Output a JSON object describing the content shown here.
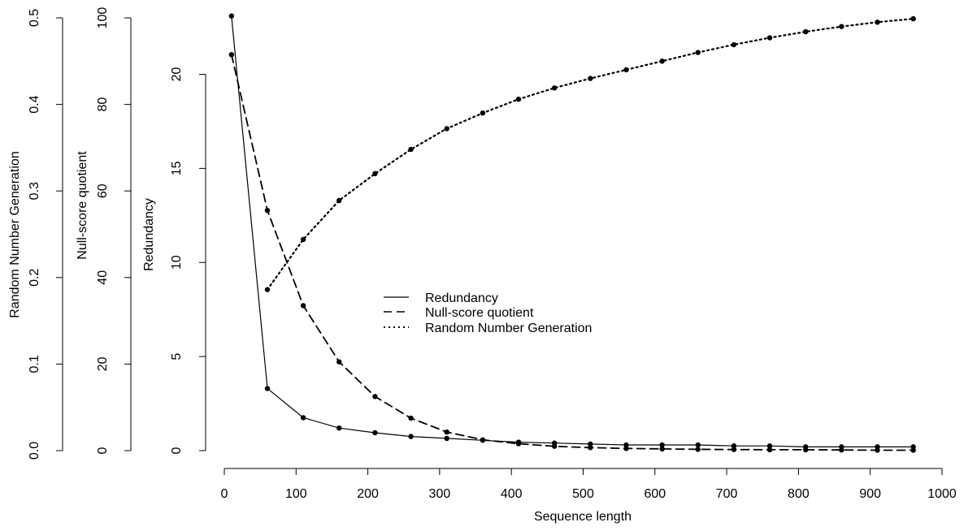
{
  "chart_data": {
    "type": "line",
    "xlabel": "Sequence length",
    "x_axis": {
      "range": [
        0,
        1000
      ],
      "ticks": [
        0,
        100,
        200,
        300,
        400,
        500,
        600,
        700,
        800,
        900,
        1000
      ]
    },
    "y_axes": [
      {
        "id": "rng",
        "label": "Random Number Generation",
        "range": [
          0,
          0.5
        ],
        "ticks": [
          "0.0",
          "0.1",
          "0.2",
          "0.3",
          "0.4",
          "0.5"
        ]
      },
      {
        "id": "nsq",
        "label": "Null-score quotient",
        "range": [
          0,
          100
        ],
        "ticks": [
          "0",
          "20",
          "40",
          "60",
          "80",
          "100"
        ]
      },
      {
        "id": "red",
        "label": "Redundancy",
        "range": [
          0,
          23
        ],
        "ticks": [
          "0",
          "5",
          "10",
          "15",
          "20"
        ]
      }
    ],
    "legend": {
      "placement": "center",
      "entries": [
        "Redundancy",
        "Null-score quotient",
        "Random Number Generation"
      ]
    },
    "series": [
      {
        "name": "Redundancy",
        "axis": "red",
        "line": "solid",
        "x": [
          10,
          60,
          110,
          160,
          210,
          260,
          310,
          360,
          410,
          460,
          510,
          560,
          610,
          660,
          710,
          760,
          810,
          860,
          910,
          960
        ],
        "y": [
          23.1,
          3.3,
          1.75,
          1.2,
          0.95,
          0.75,
          0.65,
          0.55,
          0.45,
          0.4,
          0.35,
          0.3,
          0.3,
          0.3,
          0.25,
          0.25,
          0.2,
          0.2,
          0.2,
          0.2
        ]
      },
      {
        "name": "Null-score quotient",
        "axis": "nsq",
        "line": "dashed",
        "x": [
          10,
          60,
          110,
          160,
          210,
          260,
          310,
          360,
          410,
          460,
          510,
          560,
          610,
          660,
          710,
          760,
          810,
          860,
          910,
          960
        ],
        "y": [
          91.5,
          55.5,
          33.5,
          20.5,
          12.5,
          7.5,
          4.3,
          2.5,
          1.6,
          1.0,
          0.7,
          0.5,
          0.4,
          0.3,
          0.25,
          0.2,
          0.2,
          0.15,
          0.1,
          0.1
        ]
      },
      {
        "name": "Random Number Generation",
        "axis": "rng",
        "line": "dotted",
        "x": [
          60,
          110,
          160,
          210,
          260,
          310,
          360,
          410,
          460,
          510,
          560,
          610,
          660,
          710,
          760,
          810,
          860,
          910,
          960
        ],
        "y": [
          0.186,
          0.244,
          0.289,
          0.32,
          0.348,
          0.372,
          0.39,
          0.406,
          0.419,
          0.43,
          0.44,
          0.45,
          0.46,
          0.469,
          0.477,
          0.484,
          0.49,
          0.495,
          0.499
        ]
      }
    ]
  }
}
